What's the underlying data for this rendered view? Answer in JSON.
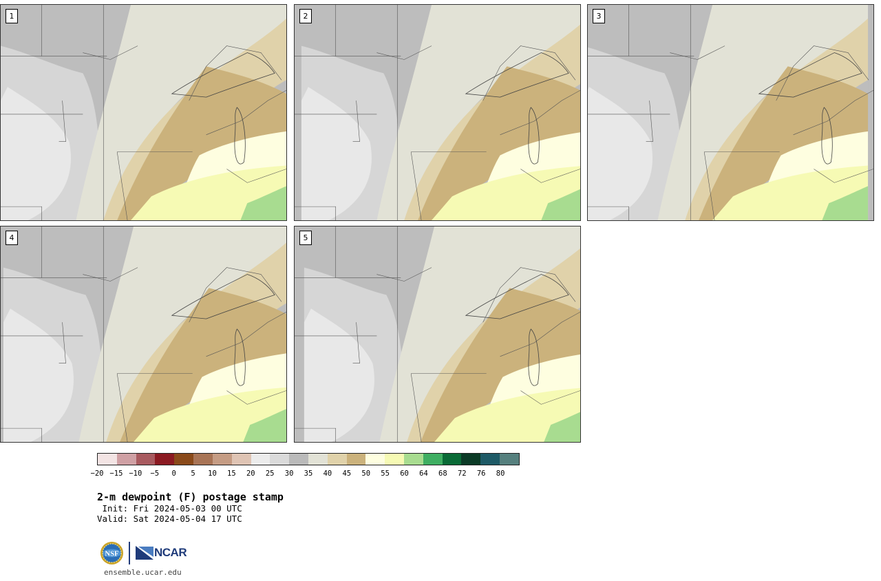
{
  "panels": [
    {
      "label": "1"
    },
    {
      "label": "2"
    },
    {
      "label": "3"
    },
    {
      "label": "4"
    },
    {
      "label": "5"
    }
  ],
  "colorbar": {
    "colors": [
      "#f3e4e4",
      "#cfa0a4",
      "#a85a5f",
      "#8b1a22",
      "#8a4a1a",
      "#a87456",
      "#c59c84",
      "#dfc4b4",
      "#ececec",
      "#dadada",
      "#bababa",
      "#e2e2d6",
      "#e0d2aa",
      "#cbb27c",
      "#fefee0",
      "#f6fab4",
      "#a8dc90",
      "#3fae62",
      "#0a6a36",
      "#0b3a26",
      "#1e5a66",
      "#56807e"
    ],
    "ticks": [
      "−20",
      "−15",
      "−10",
      "−5",
      "0",
      "5",
      "10",
      "15",
      "20",
      "25",
      "30",
      "35",
      "40",
      "45",
      "50",
      "55",
      "60",
      "64",
      "68",
      "72",
      "76",
      "80"
    ]
  },
  "title": "2-m dewpoint (F) postage stamp",
  "init": " Init: Fri 2024-05-03 00 UTC",
  "valid": "Valid: Sat 2024-05-04 17 UTC",
  "logos": {
    "ncar": "NCAR",
    "nsf": "NSF"
  },
  "footer": "ensemble.ucar.edu",
  "colors": {
    "ncar_blue": "#1f3b7a"
  }
}
